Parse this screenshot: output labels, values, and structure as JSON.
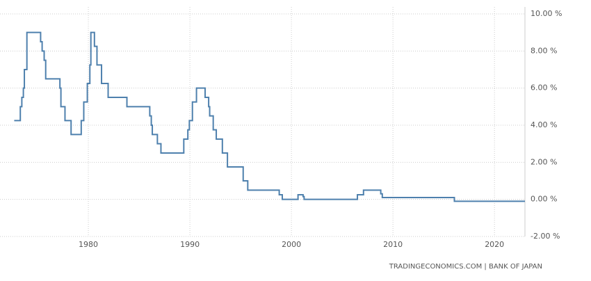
{
  "chart_data": {
    "type": "line",
    "source": "TRADINGECONOMICS.COM | BANK OF JAPAN",
    "xlim": [
      1971.3,
      2023.0
    ],
    "xticks": [
      1980,
      1990,
      2000,
      2010,
      2020
    ],
    "ylim": [
      -2,
      10
    ],
    "yticks": [
      {
        "value": -2,
        "label": "-2.00 %"
      },
      {
        "value": 0,
        "label": "0.00 %"
      },
      {
        "value": 2,
        "label": "2.00 %"
      },
      {
        "value": 4,
        "label": "4.00 %"
      },
      {
        "value": 6,
        "label": "6.00 %"
      },
      {
        "value": 8,
        "label": "8.00 %"
      },
      {
        "value": 10,
        "label": "10.00 %"
      }
    ],
    "grid": true,
    "series": [
      {
        "color": "#4e80ad",
        "x": [
          1972.7,
          1973.3,
          1973.3,
          1973.45,
          1973.45,
          1973.6,
          1973.6,
          1973.7,
          1973.7,
          1973.95,
          1973.95,
          1975.3,
          1975.3,
          1975.45,
          1975.45,
          1975.65,
          1975.65,
          1975.8,
          1975.8,
          1977.2,
          1977.2,
          1977.3,
          1977.3,
          1977.7,
          1977.7,
          1978.3,
          1978.3,
          1979.3,
          1979.3,
          1979.55,
          1979.55,
          1979.9,
          1979.9,
          1980.15,
          1980.15,
          1980.25,
          1980.25,
          1980.6,
          1980.6,
          1980.85,
          1980.85,
          1981.3,
          1981.3,
          1981.95,
          1981.95,
          1983.8,
          1983.8,
          1986.05,
          1986.05,
          1986.2,
          1986.2,
          1986.3,
          1986.3,
          1986.8,
          1986.8,
          1987.15,
          1987.15,
          1989.4,
          1989.4,
          1989.8,
          1989.8,
          1989.95,
          1989.95,
          1990.25,
          1990.25,
          1990.65,
          1990.65,
          1991.5,
          1991.5,
          1991.85,
          1991.85,
          1991.95,
          1991.95,
          1992.3,
          1992.3,
          1992.6,
          1992.6,
          1993.2,
          1993.2,
          1993.7,
          1993.7,
          1995.25,
          1995.25,
          1995.7,
          1995.7,
          1998.8,
          1998.8,
          1999.1,
          1999.1,
          2000.65,
          2000.65,
          2001.15,
          2001.15,
          2001.25,
          2001.25,
          2006.5,
          2006.5,
          2007.1,
          2007.1,
          2008.8,
          2008.8,
          2008.95,
          2008.95,
          2016.05,
          2016.05,
          2023.0
        ],
        "values": [
          4.25,
          4.25,
          5,
          5,
          5.5,
          5.5,
          6,
          6,
          7,
          7,
          9,
          9,
          8.5,
          8.5,
          8,
          8,
          7.5,
          7.5,
          6.5,
          6.5,
          6,
          6,
          5,
          5,
          4.25,
          4.25,
          3.5,
          3.5,
          4.25,
          4.25,
          5.25,
          5.25,
          6.25,
          6.25,
          7.25,
          7.25,
          9,
          9,
          8.25,
          8.25,
          7.25,
          7.25,
          6.25,
          6.25,
          5.5,
          5.5,
          5,
          5,
          4.5,
          4.5,
          4,
          4,
          3.5,
          3.5,
          3,
          3,
          2.5,
          2.5,
          3.25,
          3.25,
          3.75,
          3.75,
          4.25,
          4.25,
          5.25,
          5.25,
          6,
          6,
          5.5,
          5.5,
          5,
          5,
          4.5,
          4.5,
          3.75,
          3.75,
          3.25,
          3.25,
          2.5,
          2.5,
          1.75,
          1.75,
          1,
          1,
          0.5,
          0.5,
          0.25,
          0.25,
          0,
          0,
          0.25,
          0.25,
          0.15,
          0.15,
          0,
          0,
          0.25,
          0.25,
          0.5,
          0.5,
          0.3,
          0.3,
          0.1,
          0.1,
          -0.1,
          -0.1
        ]
      }
    ]
  }
}
